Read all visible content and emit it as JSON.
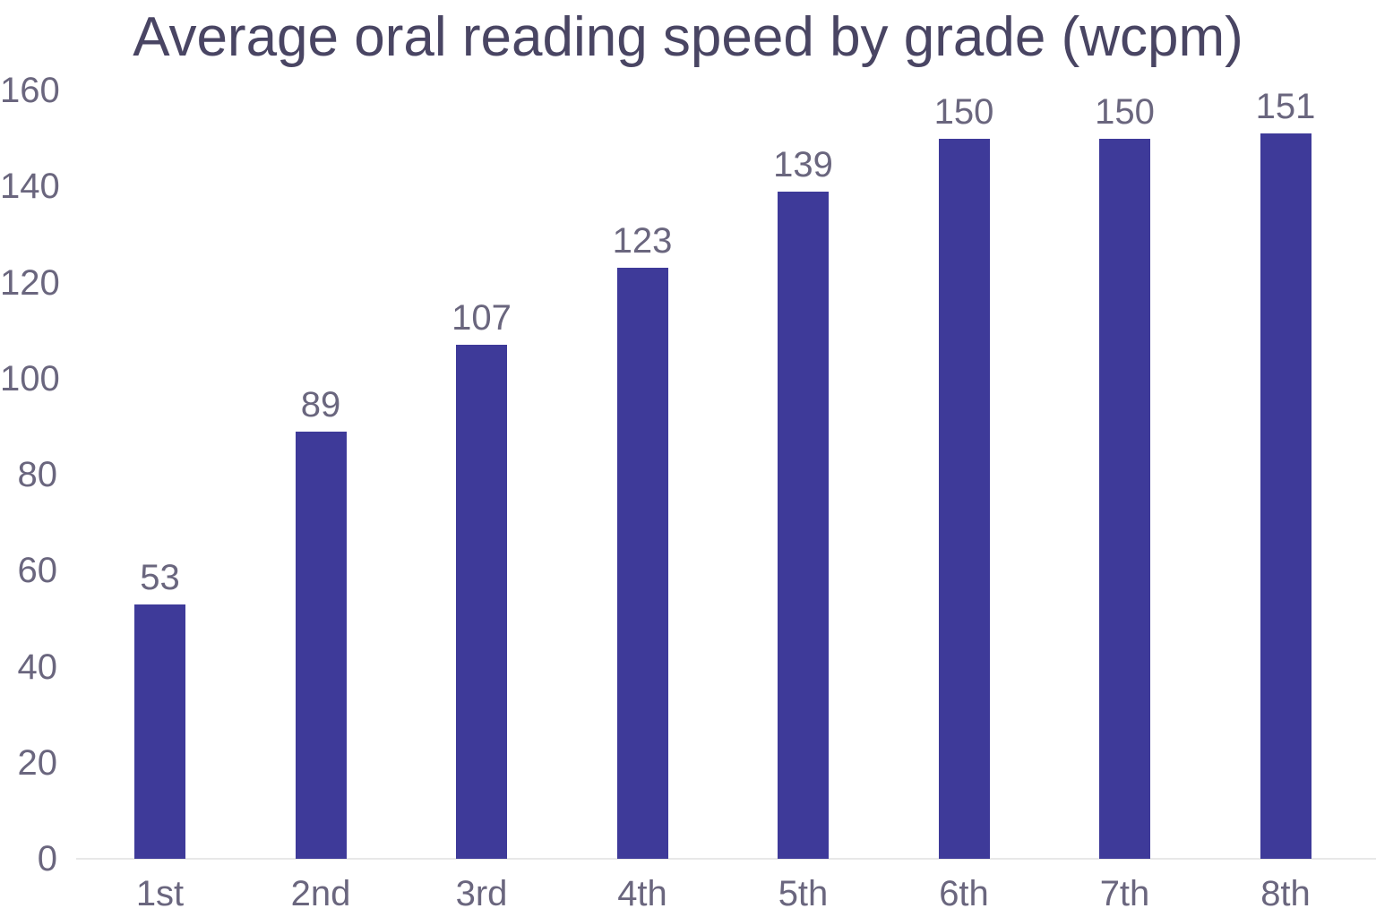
{
  "chart_data": {
    "type": "bar",
    "title": "Average oral reading speed by grade (wcpm)",
    "categories": [
      "1st",
      "2nd",
      "3rd",
      "4th",
      "5th",
      "6th",
      "7th",
      "8th"
    ],
    "values": [
      53,
      89,
      107,
      123,
      139,
      150,
      150,
      151
    ],
    "xlabel": "",
    "ylabel": "",
    "ylim": [
      0,
      160
    ],
    "yticks": [
      0,
      20,
      40,
      60,
      80,
      100,
      120,
      140,
      160
    ],
    "grid": false,
    "legend_position": "none",
    "value_labels_shown": true
  },
  "colors": {
    "background": "#ffffff",
    "bar": "#3e3a99",
    "title_text": "#494563",
    "axis_text": "#6a667e",
    "baseline": "#e8e8e8"
  }
}
